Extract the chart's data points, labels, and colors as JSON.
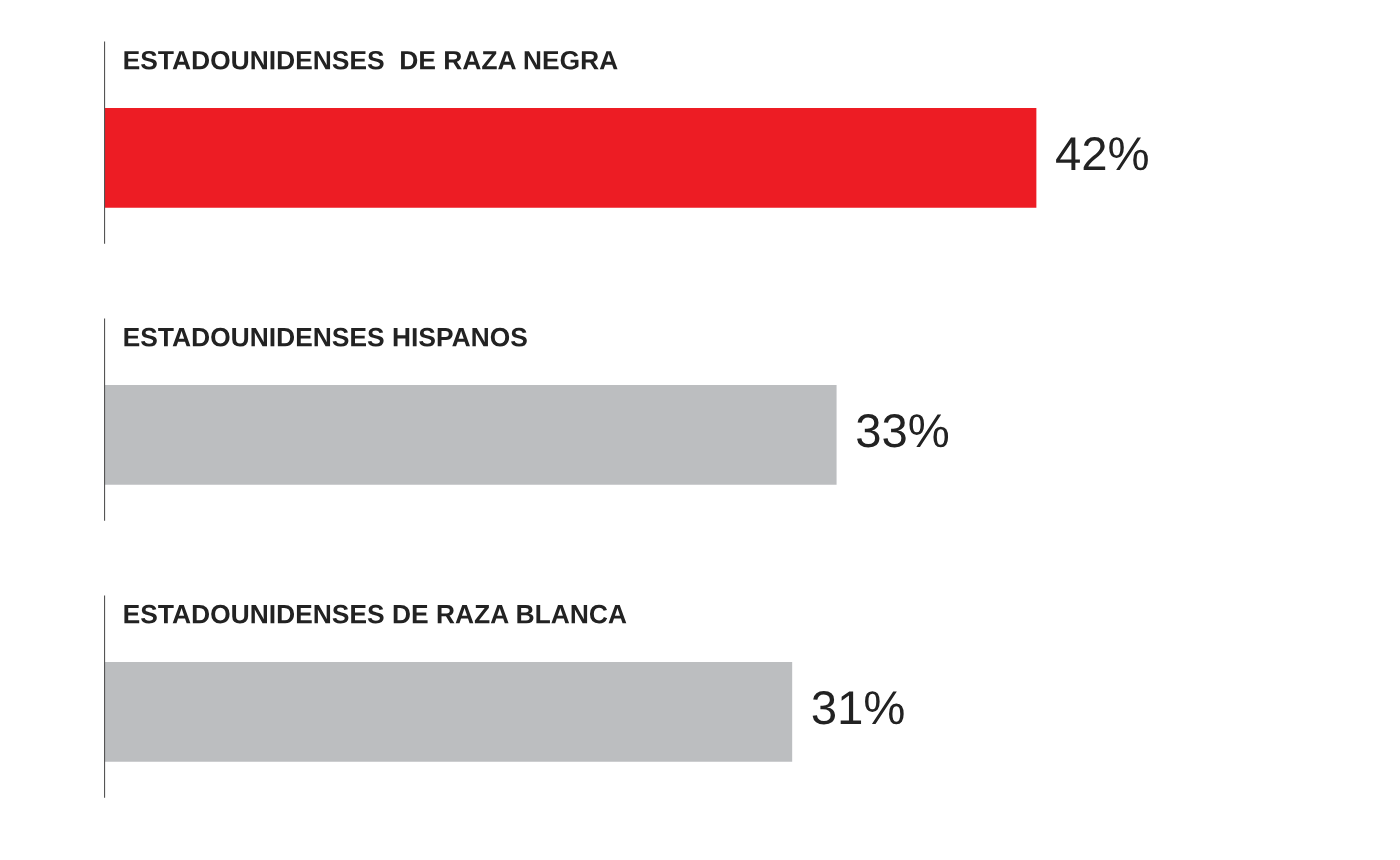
{
  "chart_data": {
    "type": "bar",
    "orientation": "horizontal",
    "categories": [
      "ESTADOUNIDENSES  DE RAZA NEGRA",
      "ESTADOUNIDENSES HISPANOS",
      "ESTADOUNIDENSES DE RAZA BLANCA"
    ],
    "values": [
      42,
      33,
      31
    ],
    "colors": [
      "#ed1c24",
      "#bcbec0",
      "#bcbec0"
    ],
    "value_labels": [
      "42%",
      "33%",
      "31%"
    ]
  }
}
